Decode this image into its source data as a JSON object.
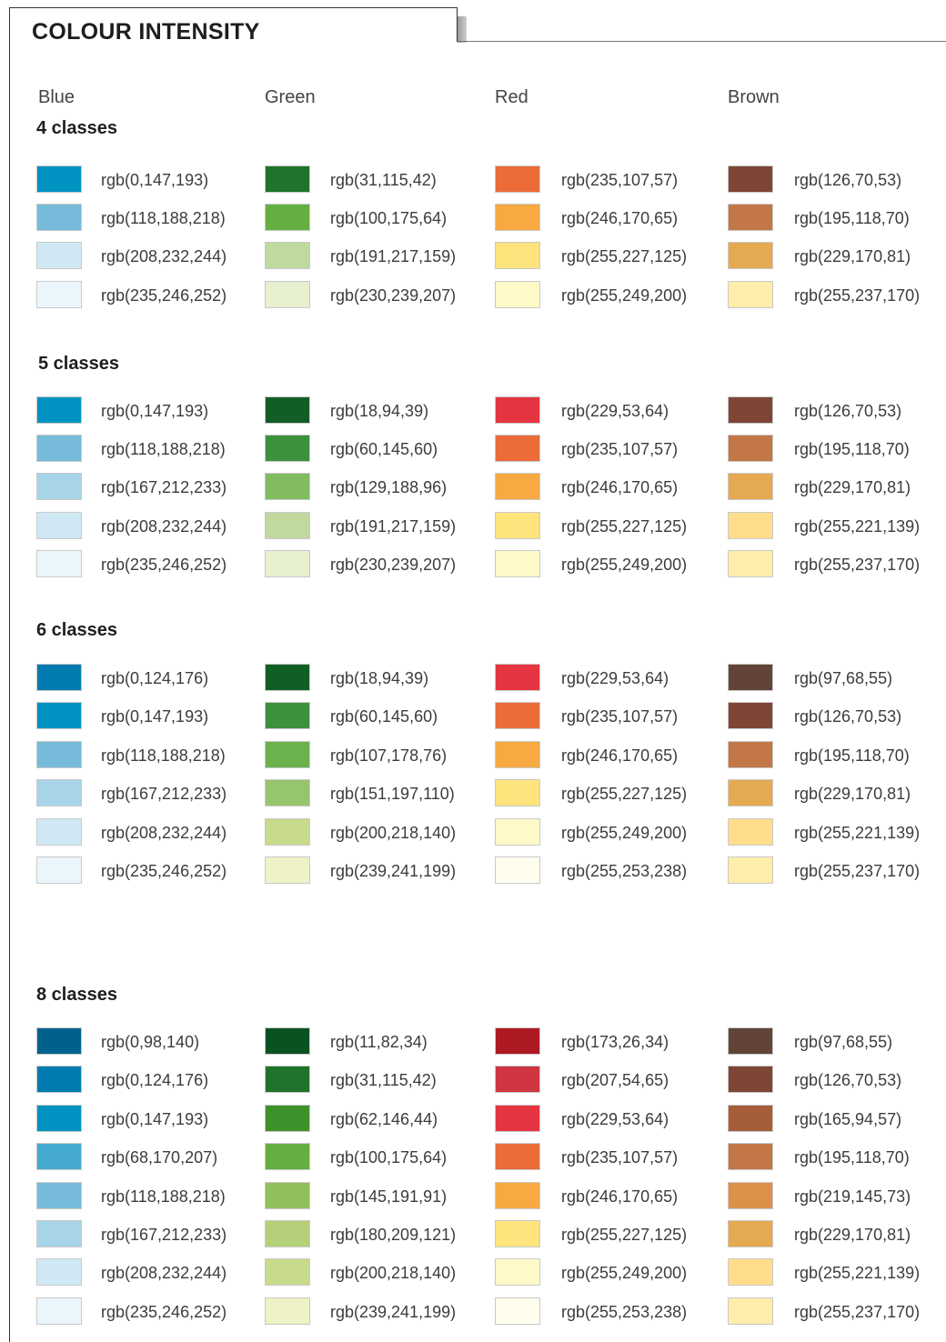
{
  "title": "COLOUR INTENSITY",
  "columns": [
    {
      "name": "Blue"
    },
    {
      "name": "Green"
    },
    {
      "name": "Red"
    },
    {
      "name": "Brown"
    }
  ],
  "sections": [
    {
      "label": "4 classes",
      "colors": [
        [
          "rgb(0,147,193)",
          "rgb(118,188,218)",
          "rgb(208,232,244)",
          "rgb(235,246,252)"
        ],
        [
          "rgb(31,115,42)",
          "rgb(100,175,64)",
          "rgb(191,217,159)",
          "rgb(230,239,207)"
        ],
        [
          "rgb(235,107,57)",
          "rgb(246,170,65)",
          "rgb(255,227,125)",
          "rgb(255,249,200)"
        ],
        [
          "rgb(126,70,53)",
          "rgb(195,118,70)",
          "rgb(229,170,81)",
          "rgb(255,237,170)"
        ]
      ]
    },
    {
      "label": "5 classes",
      "colors": [
        [
          "rgb(0,147,193)",
          "rgb(118,188,218)",
          "rgb(167,212,233)",
          "rgb(208,232,244)",
          "rgb(235,246,252)"
        ],
        [
          "rgb(18,94,39)",
          "rgb(60,145,60)",
          "rgb(129,188,96)",
          "rgb(191,217,159)",
          "rgb(230,239,207)"
        ],
        [
          "rgb(229,53,64)",
          "rgb(235,107,57)",
          "rgb(246,170,65)",
          "rgb(255,227,125)",
          "rgb(255,249,200)"
        ],
        [
          "rgb(126,70,53)",
          "rgb(195,118,70)",
          "rgb(229,170,81)",
          "rgb(255,221,139)",
          "rgb(255,237,170)"
        ]
      ]
    },
    {
      "label": "6 classes",
      "colors": [
        [
          "rgb(0,124,176)",
          "rgb(0,147,193)",
          "rgb(118,188,218)",
          "rgb(167,212,233)",
          "rgb(208,232,244)",
          "rgb(235,246,252)"
        ],
        [
          "rgb(18,94,39)",
          "rgb(60,145,60)",
          "rgb(107,178,76)",
          "rgb(151,197,110)",
          "rgb(200,218,140)",
          "rgb(239,241,199)"
        ],
        [
          "rgb(229,53,64)",
          "rgb(235,107,57)",
          "rgb(246,170,65)",
          "rgb(255,227,125)",
          "rgb(255,249,200)",
          "rgb(255,253,238)"
        ],
        [
          "rgb(97,68,55)",
          "rgb(126,70,53)",
          "rgb(195,118,70)",
          "rgb(229,170,81)",
          "rgb(255,221,139)",
          "rgb(255,237,170)"
        ]
      ]
    },
    {
      "label": "8 classes",
      "colors": [
        [
          "rgb(0,98,140)",
          "rgb(0,124,176)",
          "rgb(0,147,193)",
          "rgb(68,170,207)",
          "rgb(118,188,218)",
          "rgb(167,212,233)",
          "rgb(208,232,244)",
          "rgb(235,246,252)"
        ],
        [
          "rgb(11,82,34)",
          "rgb(31,115,42)",
          "rgb(62,146,44)",
          "rgb(100,175,64)",
          "rgb(145,191,91)",
          "rgb(180,209,121)",
          "rgb(200,218,140)",
          "rgb(239,241,199)"
        ],
        [
          "rgb(173,26,34)",
          "rgb(207,54,65)",
          "rgb(229,53,64)",
          "rgb(235,107,57)",
          "rgb(246,170,65)",
          "rgb(255,227,125)",
          "rgb(255,249,200)",
          "rgb(255,253,238)"
        ],
        [
          "rgb(97,68,55)",
          "rgb(126,70,53)",
          "rgb(165,94,57)",
          "rgb(195,118,70)",
          "rgb(219,145,73)",
          "rgb(229,170,81)",
          "rgb(255,221,139)",
          "rgb(255,237,170)"
        ]
      ]
    }
  ]
}
